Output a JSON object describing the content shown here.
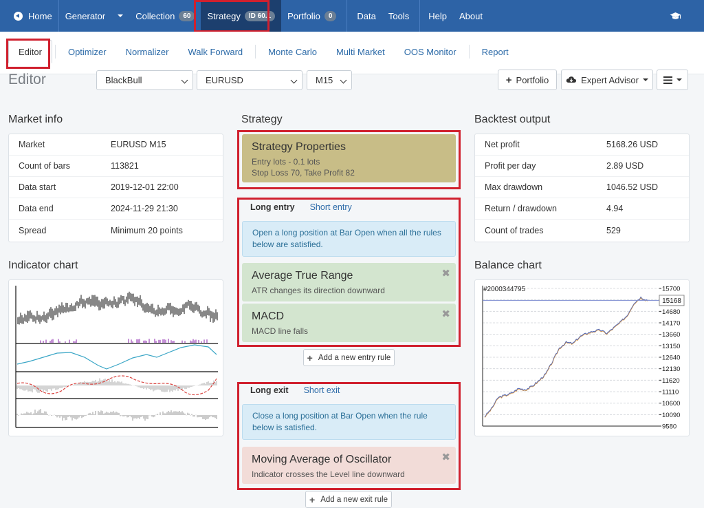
{
  "topnav": {
    "home": "Home",
    "generator": "Generator",
    "collection": "Collection",
    "collection_count": "60",
    "strategy": "Strategy",
    "strategy_id": "ID 60.1",
    "portfolio": "Portfolio",
    "portfolio_count": "0",
    "data": "Data",
    "tools": "Tools",
    "help": "Help",
    "about": "About"
  },
  "subnav": {
    "tabs": [
      "Editor",
      "Optimizer",
      "Normalizer",
      "Walk Forward",
      "Monte Carlo",
      "Multi Market",
      "OOS Monitor",
      "Report"
    ]
  },
  "toolbar": {
    "title": "Editor",
    "broker": "BlackBull",
    "symbol": "EURUSD",
    "period": "M15",
    "portfolio_button": "Portfolio",
    "expert_button": "Expert Advisor"
  },
  "market_info": {
    "title": "Market info",
    "rows": [
      {
        "k": "Market",
        "v": "EURUSD M15"
      },
      {
        "k": "Count of bars",
        "v": "113821"
      },
      {
        "k": "Data start",
        "v": "2019-12-01 22:00"
      },
      {
        "k": "Data end",
        "v": "2024-11-29 21:30"
      },
      {
        "k": "Spread",
        "v": "Minimum 20 points"
      }
    ]
  },
  "indicator_chart": {
    "title": "Indicator chart"
  },
  "strategy": {
    "title": "Strategy",
    "properties_title": "Strategy Properties",
    "properties_line1": "Entry lots - 0.1 lots",
    "properties_line2": "Stop Loss 70, Take Profit 82",
    "entry_tab_long": "Long entry",
    "entry_tab_short": "Short entry",
    "entry_info": "Open a long position at Bar Open when all the rules below are satisfied.",
    "entry_rules": [
      {
        "name": "Average True Range",
        "desc": "ATR changes its direction downward"
      },
      {
        "name": "MACD",
        "desc": "MACD line falls"
      }
    ],
    "add_entry": "Add a new entry rule",
    "exit_tab_long": "Long exit",
    "exit_tab_short": "Short exit",
    "exit_info": "Close a long position at Bar Open when the rule below is satisfied.",
    "exit_rule": {
      "name": "Moving Average of Oscillator",
      "desc": "Indicator crosses the Level line downward"
    },
    "add_exit": "Add a new exit rule"
  },
  "backtest": {
    "title": "Backtest output",
    "rows": [
      {
        "k": "Net profit",
        "v": "5168.26 USD"
      },
      {
        "k": "Profit per day",
        "v": "2.89 USD"
      },
      {
        "k": "Max drawdown",
        "v": "1046.52 USD"
      },
      {
        "k": "Return / drawdown",
        "v": "4.94"
      },
      {
        "k": "Count of trades",
        "v": "529"
      }
    ]
  },
  "balance_chart": {
    "title": "Balance chart",
    "label": "#2000344795",
    "current": "15168",
    "ticks": [
      "15700",
      "14680",
      "14170",
      "13660",
      "13150",
      "12640",
      "12130",
      "11620",
      "11110",
      "10600",
      "10090",
      "9580"
    ]
  },
  "chart_data": {
    "type": "line",
    "y_ticks": [
      15700,
      15190,
      14680,
      14170,
      13660,
      13150,
      12640,
      12130,
      11620,
      11110,
      10600,
      10090,
      9580
    ],
    "ylim": [
      9580,
      15700
    ],
    "current_value": 15168,
    "series": [
      {
        "values": [
          10000,
          10350,
          10850,
          10950,
          11050,
          11250,
          11200,
          11350,
          11600,
          11900,
          12450,
          13050,
          13300,
          13250,
          13550,
          13700,
          13800,
          13850,
          13700,
          13950,
          14200,
          14500,
          15050,
          15300,
          15168
        ]
      }
    ]
  }
}
